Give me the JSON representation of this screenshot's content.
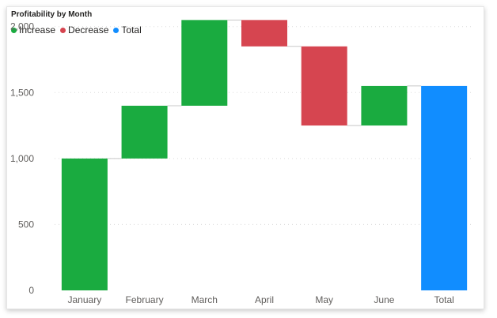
{
  "chart_data": {
    "type": "waterfall",
    "title": "Profitability by Month",
    "legend": [
      {
        "name": "Increase",
        "color": "#1aab40"
      },
      {
        "name": "Decrease",
        "color": "#d64550"
      },
      {
        "name": "Total",
        "color": "#118dff"
      }
    ],
    "legend_position": "top-left",
    "categories": [
      "January",
      "February",
      "March",
      "April",
      "May",
      "June",
      "Total"
    ],
    "steps": [
      {
        "category": "January",
        "start": 0,
        "end": 1000,
        "kind": "Increase"
      },
      {
        "category": "February",
        "start": 1000,
        "end": 1400,
        "kind": "Increase"
      },
      {
        "category": "March",
        "start": 1400,
        "end": 2050,
        "kind": "Increase"
      },
      {
        "category": "April",
        "start": 2050,
        "end": 1850,
        "kind": "Decrease"
      },
      {
        "category": "May",
        "start": 1850,
        "end": 1250,
        "kind": "Decrease"
      },
      {
        "category": "June",
        "start": 1250,
        "end": 1550,
        "kind": "Increase"
      },
      {
        "category": "Total",
        "start": 0,
        "end": 1550,
        "kind": "Total"
      }
    ],
    "y_ticks": [
      "0",
      "500",
      "1,000",
      "1,500",
      "2,000"
    ],
    "y_tick_values": [
      0,
      500,
      1000,
      1500,
      2000
    ],
    "ylim": [
      0,
      2100
    ],
    "grid": true
  }
}
